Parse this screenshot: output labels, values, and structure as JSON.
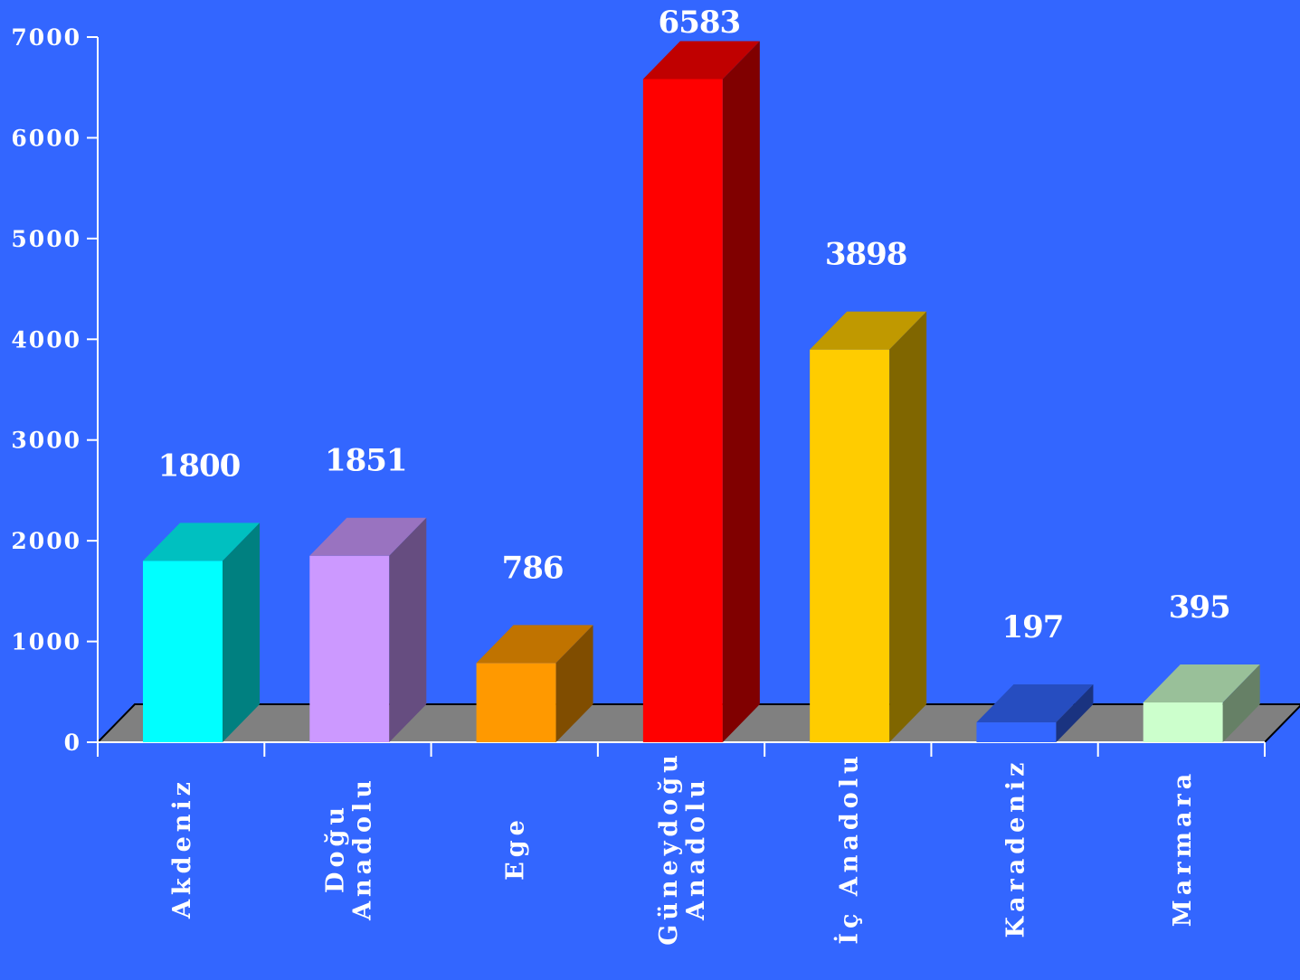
{
  "chart_data": {
    "type": "bar",
    "title": "",
    "xlabel": "",
    "ylabel": "",
    "ylim": [
      0,
      7000
    ],
    "yticks": [
      0,
      1000,
      2000,
      3000,
      4000,
      5000,
      6000,
      7000
    ],
    "ytick_labels": [
      "0",
      "1000",
      "2000",
      "3000",
      "4000",
      "5000",
      "6000",
      "7000"
    ],
    "grid": false,
    "legend": "none",
    "three_d": true,
    "categories": [
      [
        "Akdeniz"
      ],
      [
        "Doğu",
        "Anadolu"
      ],
      [
        "Ege"
      ],
      [
        "Güneydoğu",
        "Anadolu"
      ],
      [
        "İç Anadolu"
      ],
      [
        "Karadeniz"
      ],
      [
        "Marmara"
      ]
    ],
    "values": [
      1800,
      1851,
      786,
      6583,
      3898,
      197,
      395
    ],
    "value_labels": [
      "1800",
      "1851",
      "786",
      "6583",
      "3898",
      "197",
      "395"
    ],
    "colors": {
      "background": "#3366ff",
      "floor": "#808080",
      "bars": [
        {
          "front": "#00ffff",
          "top": "#00c0c0",
          "side": "#008080"
        },
        {
          "front": "#cc99ff",
          "top": "#9973c0",
          "side": "#664d80"
        },
        {
          "front": "#ff9900",
          "top": "#c07300",
          "side": "#804d00"
        },
        {
          "front": "#ff0000",
          "top": "#c00000",
          "side": "#800000"
        },
        {
          "front": "#ffcc00",
          "top": "#c09900",
          "side": "#806600"
        },
        {
          "front": "#3366ff",
          "top": "#264dc0",
          "side": "#1a3380"
        },
        {
          "front": "#ccffcc",
          "top": "#99c099",
          "side": "#668066"
        }
      ]
    }
  }
}
